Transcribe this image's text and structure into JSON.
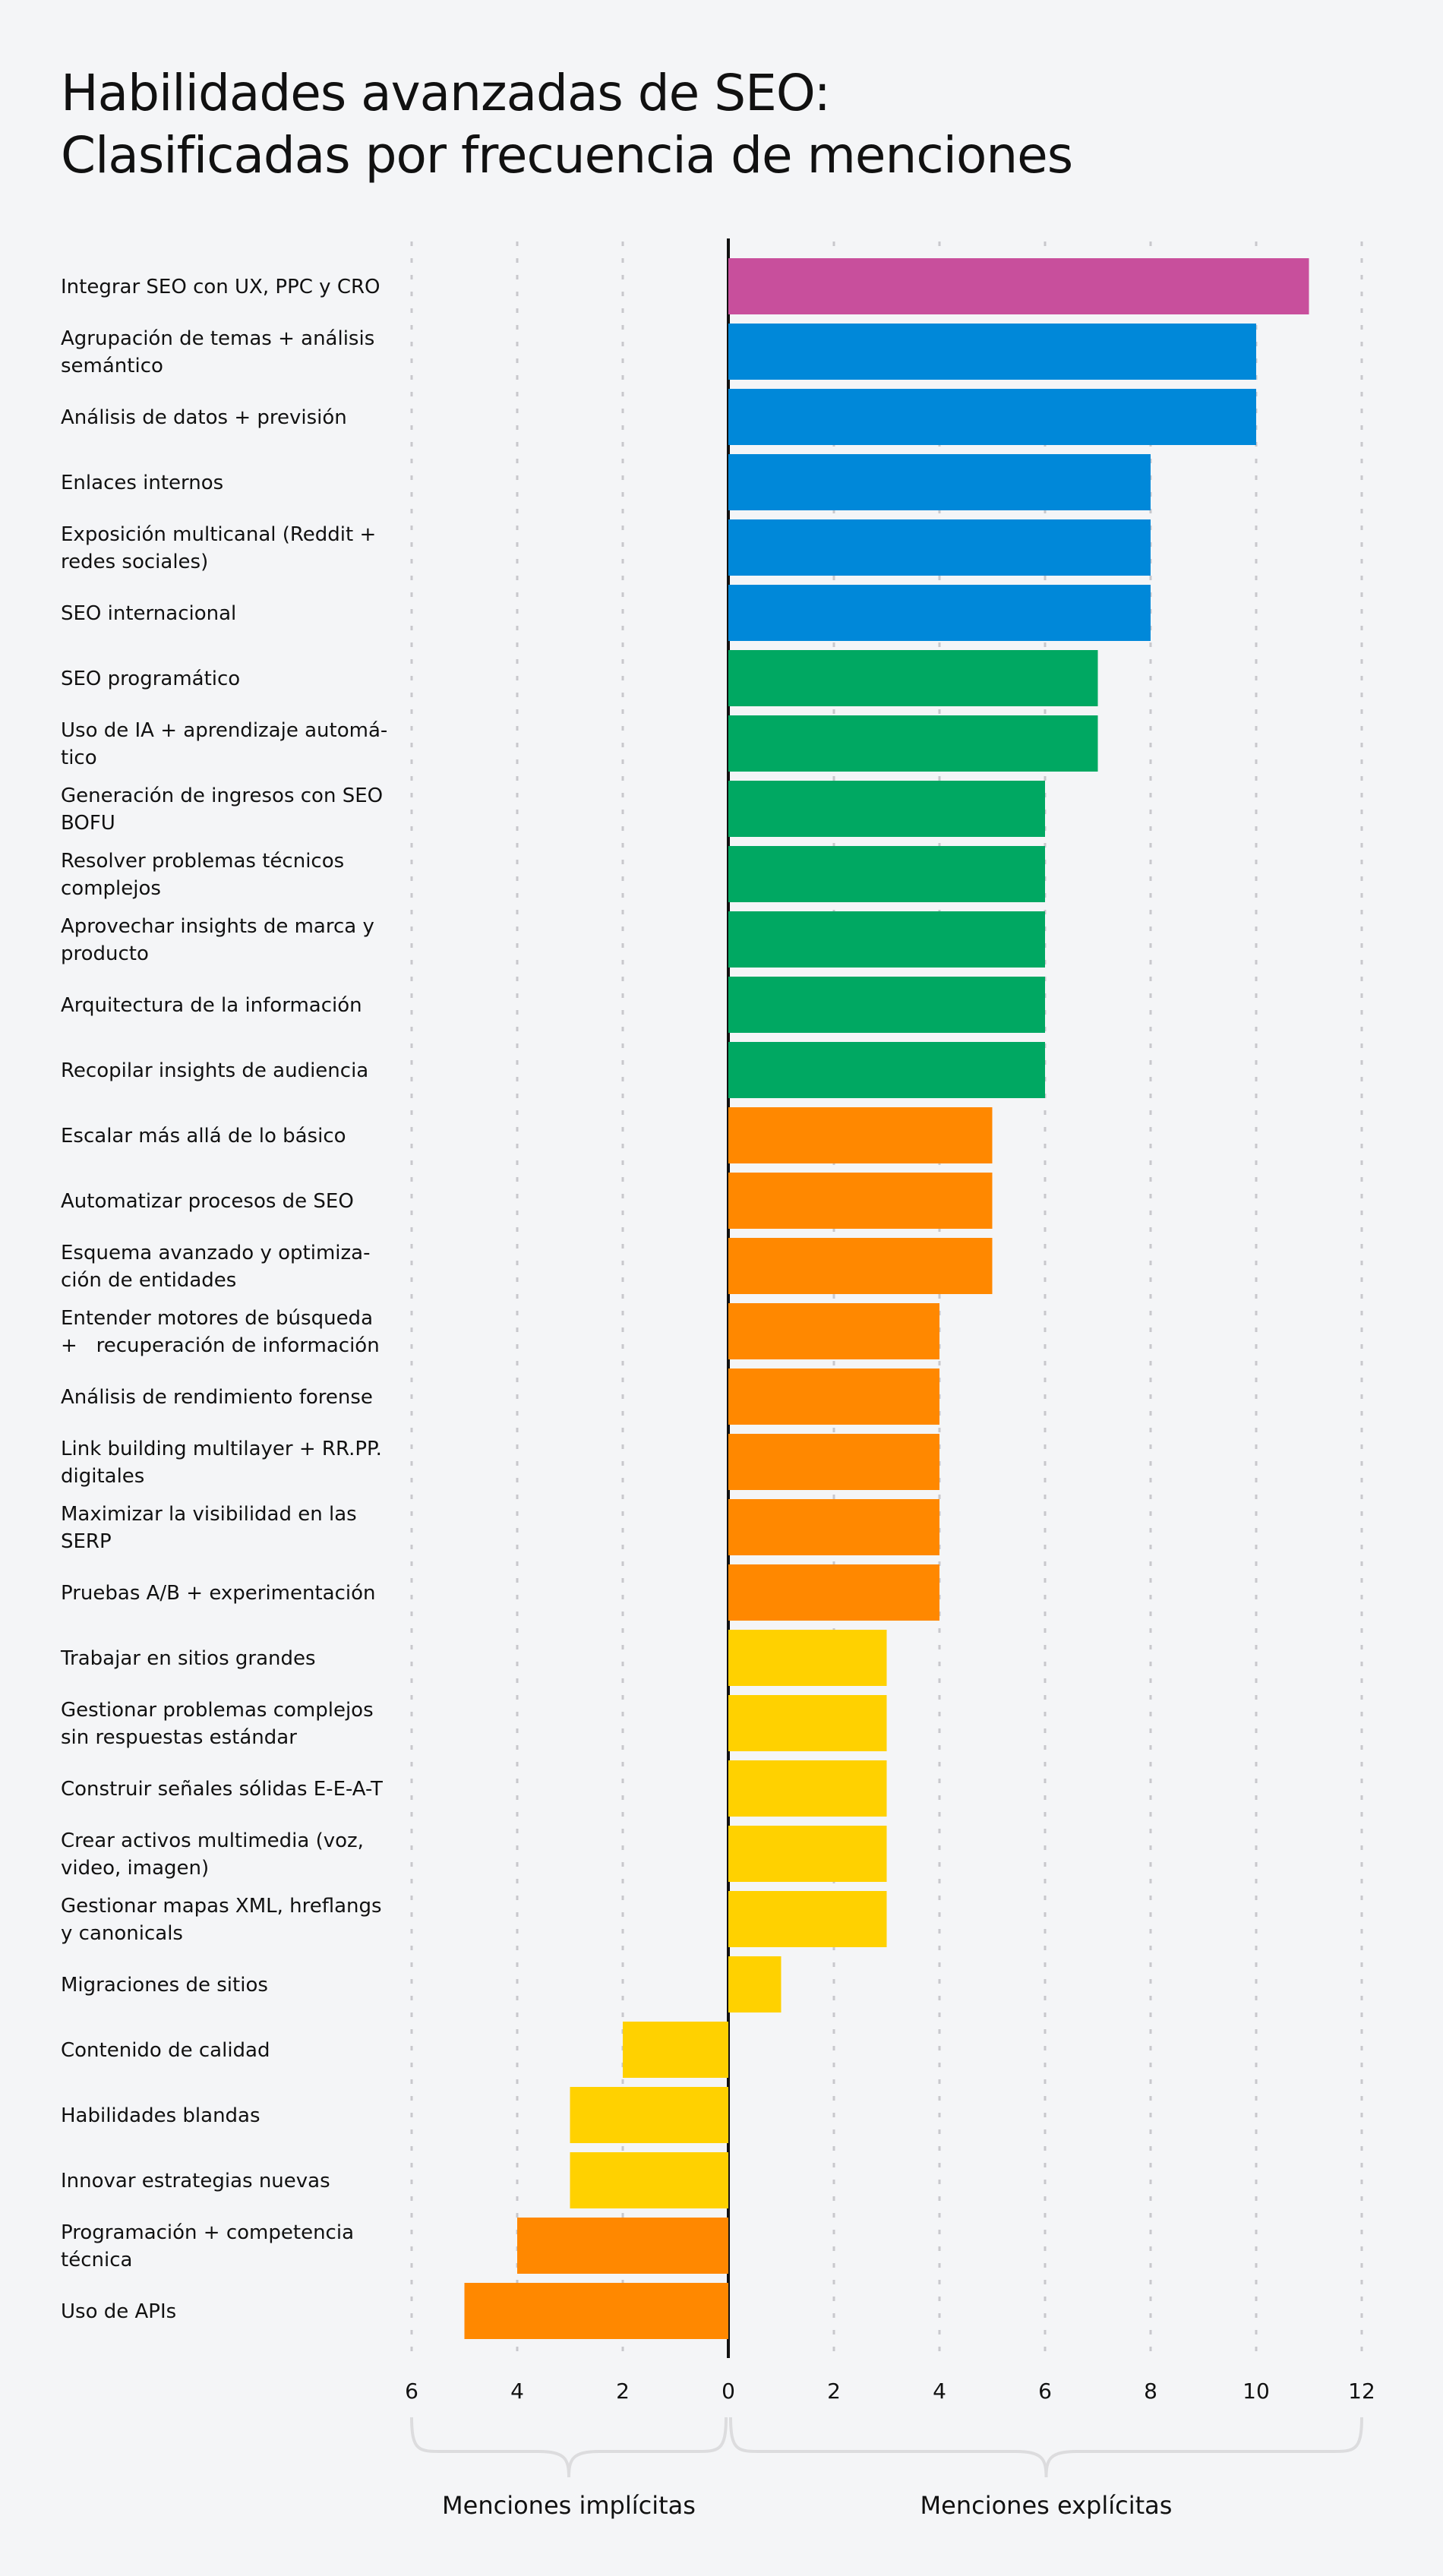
{
  "title_lines": [
    "Habilidades avanzadas de SEO:",
    "Clasificadas por frecuencia de menciones"
  ],
  "colors": {
    "background": "#F4F5F7",
    "pink": "#C84F9C",
    "blue": "#0088D9",
    "green": "#00A862",
    "orange": "#FF8800",
    "yellow": "#FFD100",
    "grid": "#C8C8CC",
    "brace": "#DCDCDE"
  },
  "chart_data": {
    "type": "bar",
    "orientation": "horizontal-diverging",
    "title": "Habilidades avanzadas de SEO: Clasificadas por frecuencia de menciones",
    "xlim": [
      -6,
      12
    ],
    "ticks": [
      -6,
      -4,
      -2,
      0,
      2,
      4,
      6,
      8,
      10,
      12
    ],
    "tick_labels": [
      "6",
      "4",
      "2",
      "0",
      "2",
      "4",
      "6",
      "8",
      "10",
      "12"
    ],
    "grid": true,
    "axis_captions": {
      "negative": "Menciones implícitas",
      "positive": "Menciones explícitas"
    },
    "bars": [
      {
        "label": [
          "Integrar SEO con UX, PPC y CRO"
        ],
        "value": 11,
        "color": "pink"
      },
      {
        "label": [
          "Agrupación de temas + análisis",
          "semántico"
        ],
        "value": 10,
        "color": "blue"
      },
      {
        "label": [
          "Análisis de datos + previsión"
        ],
        "value": 10,
        "color": "blue"
      },
      {
        "label": [
          "Enlaces internos"
        ],
        "value": 8,
        "color": "blue"
      },
      {
        "label": [
          "Exposición multicanal (Reddit +",
          "redes sociales)"
        ],
        "value": 8,
        "color": "blue"
      },
      {
        "label": [
          "SEO internacional"
        ],
        "value": 8,
        "color": "blue"
      },
      {
        "label": [
          "SEO programático"
        ],
        "value": 7,
        "color": "green"
      },
      {
        "label": [
          "Uso de IA + aprendizaje automá-",
          "tico"
        ],
        "value": 7,
        "color": "green"
      },
      {
        "label": [
          "Generación de ingresos con SEO",
          "BOFU"
        ],
        "value": 6,
        "color": "green"
      },
      {
        "label": [
          "Resolver problemas técnicos",
          "complejos"
        ],
        "value": 6,
        "color": "green"
      },
      {
        "label": [
          "Aprovechar insights de marca y",
          "producto"
        ],
        "value": 6,
        "color": "green"
      },
      {
        "label": [
          "Arquitectura de la información"
        ],
        "value": 6,
        "color": "green"
      },
      {
        "label": [
          "Recopilar insights de audiencia"
        ],
        "value": 6,
        "color": "green"
      },
      {
        "label": [
          "Escalar más allá de lo básico"
        ],
        "value": 5,
        "color": "orange"
      },
      {
        "label": [
          "Automatizar procesos de SEO"
        ],
        "value": 5,
        "color": "orange"
      },
      {
        "label": [
          "Esquema avanzado y optimiza-",
          "ción de entidades"
        ],
        "value": 5,
        "color": "orange"
      },
      {
        "label": [
          "Entender motores de búsqueda",
          "+   recuperación de información"
        ],
        "value": 4,
        "color": "orange"
      },
      {
        "label": [
          "Análisis de rendimiento forense"
        ],
        "value": 4,
        "color": "orange"
      },
      {
        "label": [
          "Link building multilayer + RR.PP.",
          "digitales"
        ],
        "value": 4,
        "color": "orange"
      },
      {
        "label": [
          "Maximizar la visibilidad en las",
          "SERP"
        ],
        "value": 4,
        "color": "orange"
      },
      {
        "label": [
          "Pruebas A/B + experimentación"
        ],
        "value": 4,
        "color": "orange"
      },
      {
        "label": [
          "Trabajar en sitios grandes"
        ],
        "value": 3,
        "color": "yellow"
      },
      {
        "label": [
          "Gestionar problemas complejos",
          "sin respuestas estándar"
        ],
        "value": 3,
        "color": "yellow"
      },
      {
        "label": [
          "Construir señales sólidas E-E-A-T"
        ],
        "value": 3,
        "color": "yellow"
      },
      {
        "label": [
          "Crear activos multimedia (voz,",
          "video, imagen)"
        ],
        "value": 3,
        "color": "yellow"
      },
      {
        "label": [
          "Gestionar mapas XML, hreflangs",
          "y canonicals"
        ],
        "value": 3,
        "color": "yellow"
      },
      {
        "label": [
          "Migraciones de sitios"
        ],
        "value": 1,
        "color": "yellow"
      },
      {
        "label": [
          "Contenido de calidad"
        ],
        "value": -2,
        "color": "yellow"
      },
      {
        "label": [
          "Habilidades blandas"
        ],
        "value": -3,
        "color": "yellow"
      },
      {
        "label": [
          "Innovar estrategias nuevas"
        ],
        "value": -3,
        "color": "yellow"
      },
      {
        "label": [
          "Programación + competencia",
          "técnica"
        ],
        "value": -4,
        "color": "orange"
      },
      {
        "label": [
          "Uso de APIs"
        ],
        "value": -5,
        "color": "orange"
      }
    ]
  }
}
